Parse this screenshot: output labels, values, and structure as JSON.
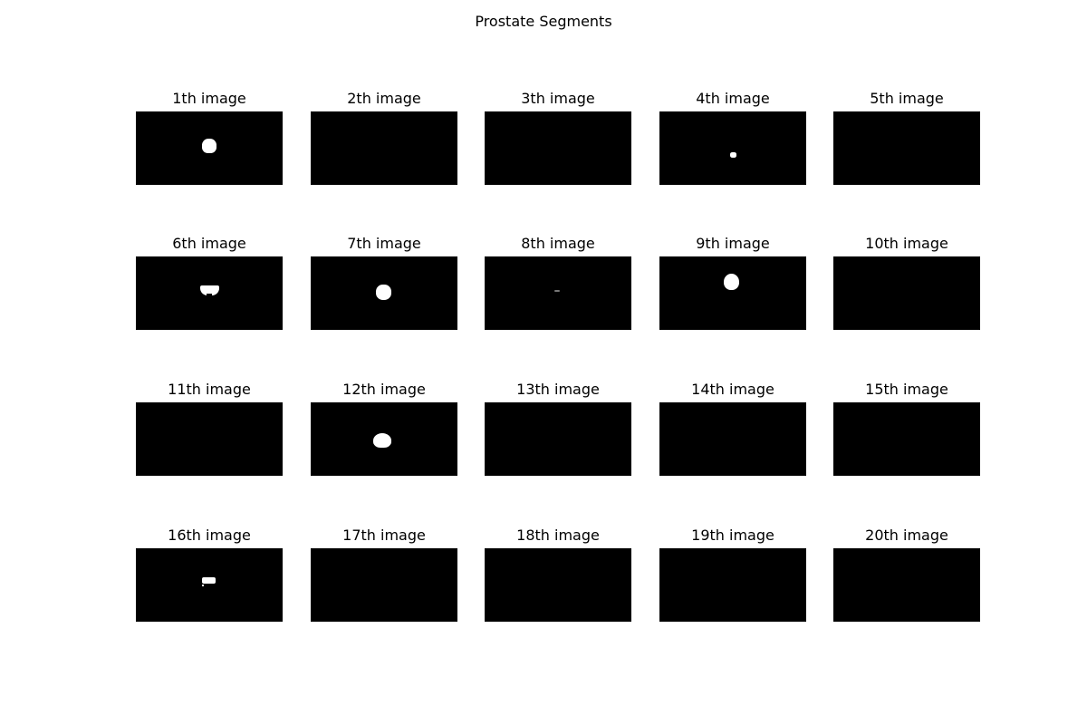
{
  "figure": {
    "suptitle": "Prostate Segments",
    "background": "#ffffff",
    "mask_background": "#000000",
    "mask_foreground": "#ffffff"
  },
  "panels": [
    {
      "title": "1th image"
    },
    {
      "title": "2th image"
    },
    {
      "title": "3th image"
    },
    {
      "title": "4th image"
    },
    {
      "title": "5th image"
    },
    {
      "title": "6th image"
    },
    {
      "title": "7th image"
    },
    {
      "title": "8th image"
    },
    {
      "title": "9th image"
    },
    {
      "title": "10th image"
    },
    {
      "title": "11th image"
    },
    {
      "title": "12th image"
    },
    {
      "title": "13th image"
    },
    {
      "title": "14th image"
    },
    {
      "title": "15th image"
    },
    {
      "title": "16th image"
    },
    {
      "title": "17th image"
    },
    {
      "title": "18th image"
    },
    {
      "title": "19th image"
    },
    {
      "title": "20th image"
    }
  ]
}
